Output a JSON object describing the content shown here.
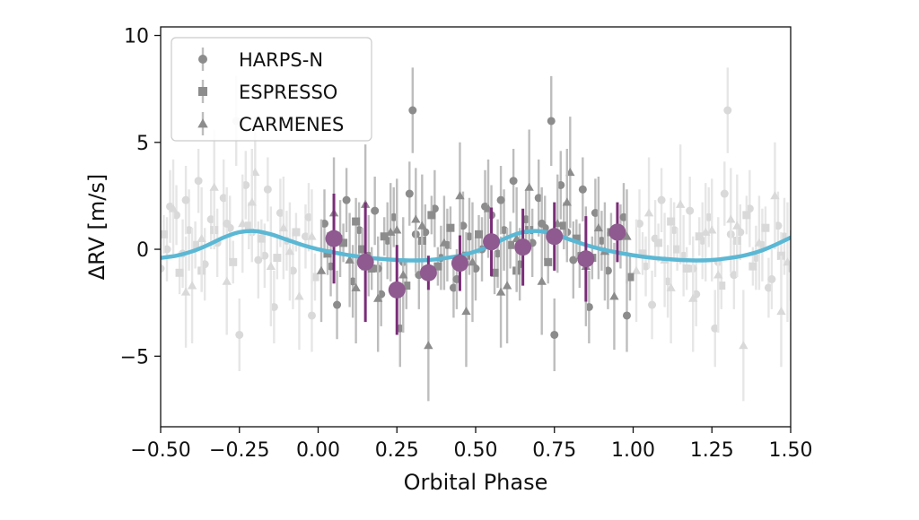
{
  "chart_data": {
    "type": "scatter",
    "title": "",
    "xlabel": "Orbital Phase",
    "ylabel": "ΔRV [m/s]",
    "xlim": [
      -0.5,
      1.5
    ],
    "ylim": [
      -8.3,
      10.4
    ],
    "xticks": [
      -0.5,
      -0.25,
      0.0,
      0.25,
      0.5,
      0.75,
      1.0,
      1.25,
      1.5
    ],
    "xtick_labels": [
      "−0.50",
      "−0.25",
      "0.00",
      "0.25",
      "0.50",
      "0.75",
      "1.00",
      "1.25",
      "1.50"
    ],
    "yticks": [
      -5,
      0,
      5,
      10
    ],
    "ytick_labels": [
      "−5",
      "0",
      "5",
      "10"
    ],
    "grid": false,
    "legend": {
      "placement": "top-left",
      "entries": [
        {
          "name": "HARPS-N",
          "marker": "circle"
        },
        {
          "name": "ESPRESSO",
          "marker": "square"
        },
        {
          "name": "CARMENES",
          "marker": "triangle"
        }
      ]
    },
    "colors": {
      "data_main": "#8c8c8c",
      "data_faded": "#d9d9d9",
      "errorbar_main": "#bdbdbd",
      "errorbar_faded": "#e6e6e6",
      "binned": "#8e5a8f",
      "binned_error": "#7a2d78",
      "model": "#5bb8d4"
    },
    "model": {
      "x": [
        -0.5,
        -0.45,
        -0.4,
        -0.35,
        -0.3,
        -0.25,
        -0.2,
        -0.15,
        -0.1,
        -0.05,
        0.0,
        0.05,
        0.1,
        0.15,
        0.2,
        0.25,
        0.3,
        0.35,
        0.4,
        0.45,
        0.5,
        0.55,
        0.6,
        0.65,
        0.7,
        0.75,
        0.8,
        0.85,
        0.9,
        0.95,
        1.0,
        1.05,
        1.1,
        1.15,
        1.2,
        1.25,
        1.3,
        1.35,
        1.4,
        1.45,
        1.5
      ],
      "y": [
        -0.4,
        -0.3,
        -0.1,
        0.2,
        0.55,
        0.8,
        0.85,
        0.7,
        0.45,
        0.2,
        0.0,
        -0.15,
        -0.28,
        -0.38,
        -0.45,
        -0.5,
        -0.52,
        -0.5,
        -0.42,
        -0.3,
        -0.1,
        0.2,
        0.55,
        0.8,
        0.85,
        0.7,
        0.45,
        0.2,
        0.0,
        -0.15,
        -0.28,
        -0.38,
        -0.45,
        -0.5,
        -0.52,
        -0.5,
        -0.42,
        -0.3,
        -0.1,
        0.2,
        0.55
      ]
    },
    "binned": {
      "x": [
        0.05,
        0.15,
        0.25,
        0.35,
        0.45,
        0.55,
        0.65,
        0.75,
        0.85,
        0.95
      ],
      "y": [
        0.5,
        -0.6,
        -1.9,
        -1.1,
        -0.65,
        0.35,
        0.1,
        0.6,
        -0.45,
        0.8
      ],
      "err": [
        2.1,
        2.8,
        2.1,
        0.8,
        1.3,
        1.6,
        1.8,
        1.6,
        2.0,
        1.4
      ]
    },
    "series": [
      {
        "name": "HARPS-N",
        "marker": "circle",
        "x": [
          0.02,
          0.04,
          0.07,
          0.09,
          0.11,
          0.13,
          0.16,
          0.18,
          0.2,
          0.22,
          0.24,
          0.27,
          0.29,
          0.3,
          0.32,
          0.34,
          0.37,
          0.39,
          0.41,
          0.43,
          0.46,
          0.48,
          0.5,
          0.53,
          0.55,
          0.57,
          0.59,
          0.62,
          0.64,
          0.66,
          0.68,
          0.7,
          0.72,
          0.74,
          0.75,
          0.77,
          0.79,
          0.81,
          0.84,
          0.86,
          0.88,
          0.9,
          0.92,
          0.96,
          0.98,
          0.06,
          0.19,
          0.31,
          0.44,
          0.58,
          0.71,
          0.83,
          0.97,
          0.26,
          0.52
        ],
        "y": [
          1.2,
          -0.8,
          0.5,
          2.3,
          -1.5,
          0.9,
          -0.3,
          1.8,
          -2.1,
          0.4,
          1.5,
          -0.6,
          2.6,
          6.5,
          -1.2,
          0.8,
          1.9,
          -0.4,
          0.2,
          -1.8,
          1.1,
          0.6,
          -0.9,
          2.0,
          1.6,
          -0.2,
          0.9,
          3.2,
          -0.7,
          1.4,
          0.3,
          2.4,
          1.0,
          6.0,
          -4.0,
          3.0,
          0.8,
          -0.5,
          2.8,
          -2.7,
          1.7,
          0.4,
          -1.0,
          0.6,
          -3.1,
          -2.6,
          -0.9,
          0.7,
          -1.4,
          2.3,
          1.2,
          -0.3,
          1.5,
          -3.7,
          0.0
        ],
        "err": [
          1.6,
          1.4,
          1.8,
          1.5,
          1.7,
          1.3,
          1.9,
          1.6,
          1.5,
          1.8,
          1.4,
          1.7,
          1.5,
          2.0,
          1.6,
          1.3,
          1.8,
          1.5,
          1.7,
          1.4,
          1.6,
          1.8,
          1.5,
          1.7,
          1.4,
          1.6,
          1.9,
          1.5,
          1.7,
          1.4,
          1.6,
          1.8,
          1.5,
          2.1,
          1.7,
          1.6,
          1.4,
          1.8,
          1.5,
          1.7,
          1.6,
          1.4,
          1.8,
          1.5,
          1.7,
          1.6,
          1.5,
          1.8,
          1.4,
          1.6,
          1.7,
          1.5,
          1.6,
          1.8,
          1.5
        ]
      },
      {
        "name": "ESPRESSO",
        "marker": "square",
        "x": [
          0.03,
          0.08,
          0.12,
          0.17,
          0.21,
          0.28,
          0.33,
          0.38,
          0.42,
          0.47,
          0.51,
          0.56,
          0.61,
          0.67,
          0.73,
          0.78,
          0.82,
          0.87,
          0.93,
          0.99,
          0.14,
          0.36,
          0.63
        ],
        "y": [
          -0.2,
          0.3,
          1.3,
          -0.9,
          0.6,
          -1.7,
          0.4,
          -0.8,
          1.0,
          -0.3,
          0.7,
          -1.1,
          0.2,
          0.9,
          -0.6,
          1.1,
          0.5,
          -0.4,
          0.8,
          -1.3,
          0.0,
          1.6,
          -1.0
        ],
        "err": [
          1.0,
          0.9,
          1.1,
          1.0,
          0.9,
          1.1,
          1.0,
          0.9,
          1.0,
          1.1,
          0.9,
          1.0,
          1.1,
          0.9,
          1.0,
          1.1,
          0.9,
          1.0,
          0.9,
          1.1,
          1.0,
          0.9,
          1.0
        ]
      },
      {
        "name": "CARMENES",
        "marker": "triangle",
        "x": [
          0.01,
          0.05,
          0.1,
          0.15,
          0.19,
          0.23,
          0.27,
          0.31,
          0.35,
          0.4,
          0.45,
          0.49,
          0.54,
          0.58,
          0.63,
          0.67,
          0.71,
          0.76,
          0.8,
          0.85,
          0.89,
          0.94,
          0.98,
          0.12,
          0.33,
          0.6,
          0.79,
          0.91,
          0.47,
          0.25
        ],
        "y": [
          -1.0,
          1.7,
          -0.5,
          2.1,
          -2.3,
          0.8,
          -1.2,
          1.4,
          -4.5,
          0.3,
          2.5,
          -0.6,
          1.9,
          -2.0,
          0.5,
          2.9,
          -1.5,
          1.2,
          3.6,
          -0.8,
          1.0,
          -2.2,
          0.6,
          -1.8,
          1.1,
          -1.7,
          2.2,
          -0.1,
          -2.9,
          0.9
        ],
        "err": [
          2.4,
          2.6,
          2.2,
          2.8,
          2.5,
          2.3,
          2.7,
          2.4,
          2.6,
          2.2,
          2.5,
          2.8,
          2.3,
          2.6,
          2.4,
          2.7,
          2.5,
          2.3,
          2.6,
          2.8,
          2.4,
          2.5,
          2.2,
          2.6,
          2.4,
          2.7,
          2.5,
          2.3,
          2.6,
          2.4
        ]
      }
    ]
  }
}
